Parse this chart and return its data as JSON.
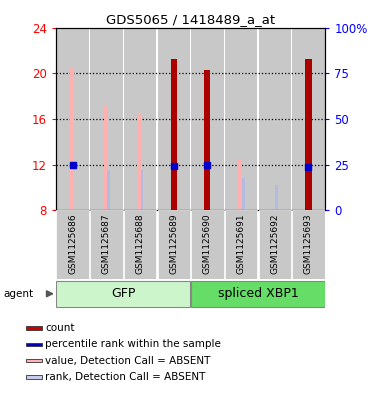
{
  "title": "GDS5065 / 1418489_a_at",
  "samples": [
    "GSM1125686",
    "GSM1125687",
    "GSM1125688",
    "GSM1125689",
    "GSM1125690",
    "GSM1125691",
    "GSM1125692",
    "GSM1125693"
  ],
  "ylim_left": [
    8,
    24
  ],
  "ylim_right": [
    0,
    100
  ],
  "yticks_left": [
    8,
    12,
    16,
    20,
    24
  ],
  "yticks_right": [
    0,
    25,
    50,
    75,
    100
  ],
  "ytick_labels_right": [
    "0",
    "25",
    "50",
    "75",
    "100%"
  ],
  "value_absent": [
    20.5,
    17.2,
    16.5,
    null,
    null,
    12.5,
    null,
    null
  ],
  "rank_absent": [
    null,
    11.5,
    11.5,
    null,
    null,
    10.8,
    10.2,
    null
  ],
  "count_values": [
    null,
    null,
    null,
    21.2,
    20.3,
    null,
    null,
    21.2
  ],
  "percentile_rank": [
    12.0,
    null,
    null,
    11.9,
    12.0,
    null,
    null,
    11.8
  ],
  "gfp_color": "#ccf5cc",
  "xbp1_color": "#66dd66",
  "bar_color_absent_value": "#ffb0b0",
  "bar_color_absent_rank": "#b0b8e8",
  "bar_color_count": "#aa0000",
  "dot_color_percentile": "#0000cc",
  "bg_color": "#c8c8c8",
  "legend_count_color": "#cc0000",
  "legend_percentile_color": "#0000cc",
  "legend_absent_value_color": "#ffb0b0",
  "legend_absent_rank_color": "#c8ccee"
}
